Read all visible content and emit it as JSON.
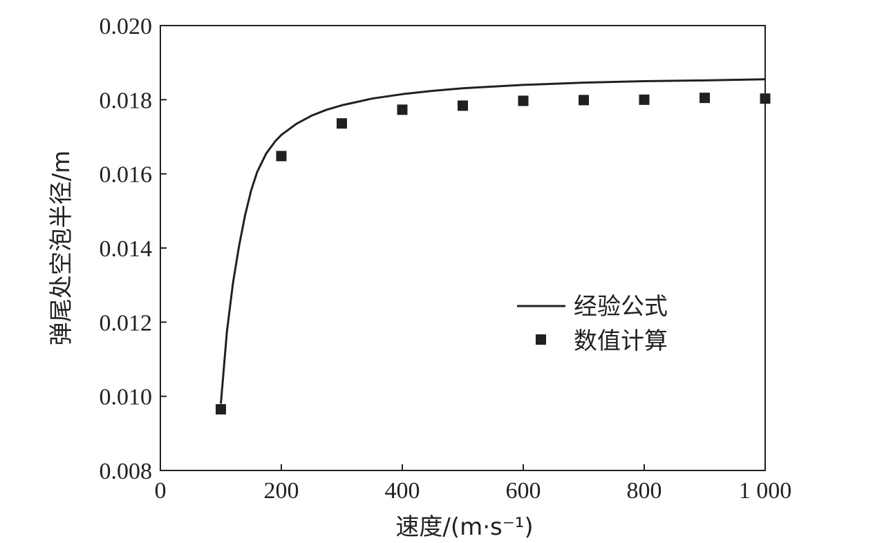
{
  "chart_data": {
    "type": "line",
    "title": "",
    "xlabel": "速度/(m·s⁻¹)",
    "ylabel": "弹尾处空泡半径/m",
    "xlim": [
      0,
      1000
    ],
    "ylim": [
      0.008,
      0.02
    ],
    "x_ticks": [
      0,
      200,
      400,
      600,
      800,
      1000
    ],
    "x_tick_labels": [
      "0",
      "200",
      "400",
      "600",
      "800",
      "1 000"
    ],
    "y_ticks": [
      0.008,
      0.01,
      0.012,
      0.014,
      0.016,
      0.018,
      0.02
    ],
    "y_tick_labels": [
      "0.008",
      "0.010",
      "0.012",
      "0.014",
      "0.016",
      "0.018",
      "0.020"
    ],
    "grid": false,
    "legend_position": "center-right",
    "series": [
      {
        "name": "经验公式",
        "kind": "line",
        "color": "#231f20",
        "x": [
          100,
          110,
          120,
          130,
          140,
          150,
          160,
          175,
          190,
          200,
          225,
          250,
          275,
          300,
          350,
          400,
          450,
          500,
          600,
          700,
          800,
          900,
          1000
        ],
        "y": [
          0.0098,
          0.01175,
          0.01305,
          0.01405,
          0.01488,
          0.01555,
          0.01605,
          0.01655,
          0.01688,
          0.01705,
          0.01735,
          0.01757,
          0.01773,
          0.01785,
          0.01803,
          0.01815,
          0.01824,
          0.01831,
          0.0184,
          0.01846,
          0.0185,
          0.01852,
          0.01855
        ]
      },
      {
        "name": "数值计算",
        "kind": "scatter",
        "marker": "square",
        "color": "#231f20",
        "x": [
          100,
          200,
          300,
          400,
          500,
          600,
          700,
          800,
          900,
          1000
        ],
        "y": [
          0.00965,
          0.01648,
          0.01736,
          0.01773,
          0.01784,
          0.01797,
          0.01799,
          0.018,
          0.01805,
          0.01803
        ]
      }
    ]
  }
}
